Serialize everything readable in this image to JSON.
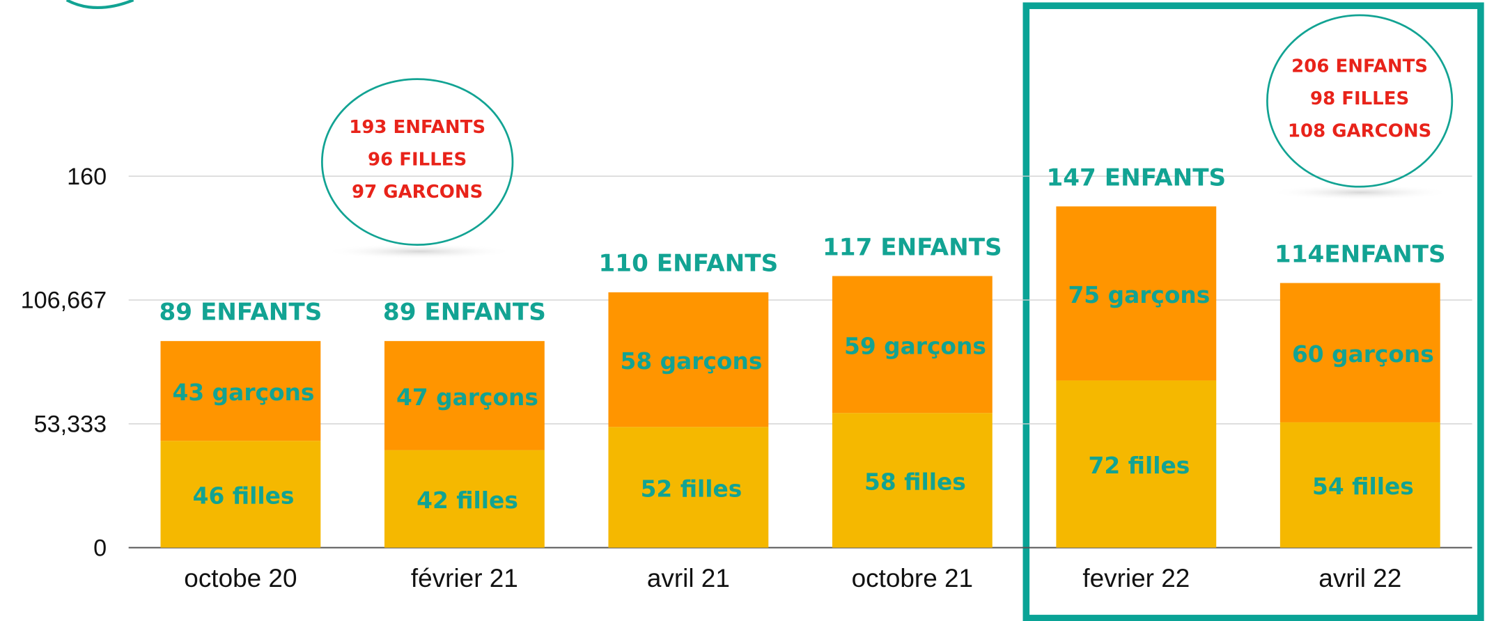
{
  "chart_data": {
    "type": "stacked_bar",
    "categories": [
      "octobe 20",
      "février 21",
      "avril 21",
      "octobre 21",
      "fevrier 22",
      "avril 22"
    ],
    "series": [
      {
        "name": "filles",
        "color": "#f5b800",
        "values": [
          46,
          42,
          52,
          58,
          72,
          54
        ],
        "value_labels": [
          "46 filles",
          "42 filles",
          "52 filles",
          "58 filles",
          "72 filles",
          "54 filles"
        ]
      },
      {
        "name": "garçons",
        "color": "#ff9500",
        "values": [
          43,
          47,
          58,
          59,
          75,
          60
        ],
        "value_labels": [
          "43 garçons",
          "47 garçons",
          "58 garçons",
          "59 garçons",
          "75 garçons",
          "60 garçons"
        ]
      }
    ],
    "total_labels": [
      "89 ENFANTS",
      "89 ENFANTS",
      "110 ENFANTS",
      "117 ENFANTS",
      "147 ENFANTS",
      "114ENFANTS"
    ],
    "ylim": [
      0,
      160
    ],
    "yticks": [
      0,
      {
        "value": 53.333,
        "label": "53,333"
      },
      {
        "value": 106.667,
        "label": "106,667"
      },
      160
    ],
    "grid": true,
    "annotations": [
      [
        "193 ENFANTS",
        "96 FILLES",
        "97 GARCONS"
      ],
      [
        "206 ENFANTS",
        "98 FILLES",
        "108 GARCONS"
      ]
    ]
  }
}
